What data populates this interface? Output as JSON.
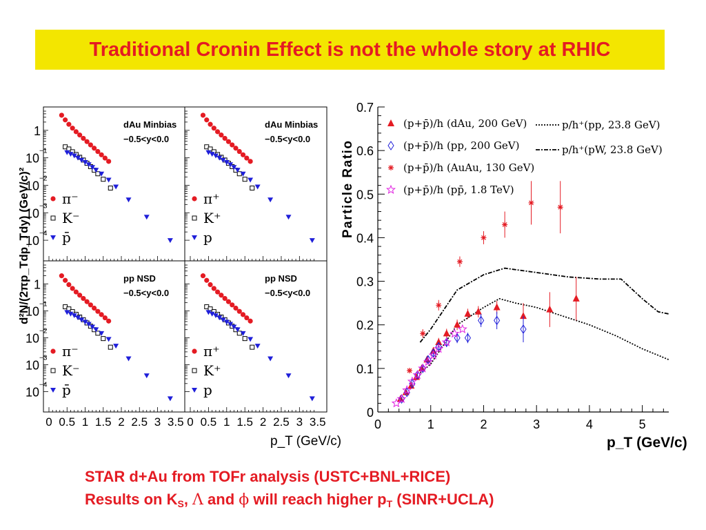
{
  "slide": {
    "title": "Traditional Cronin Effect is not the whole story at RHIC",
    "footer_line1": "STAR d+Au from TOFr analysis (USTC+BNL+RICE)",
    "footer_line2": {
      "a": "Results on K",
      "a_sub": "S",
      "b": ", ",
      "lambda": "Λ",
      "c": " and ",
      "phi": "ϕ",
      "d": " will reach higher p",
      "d_sub": "T",
      "e": " (SINR+UCLA)"
    },
    "colors": {
      "title_bg": "#f3e600",
      "accent_red": "#e41b23",
      "blue": "#1f1fd9"
    }
  },
  "chart_data": [
    {
      "type": "scatter",
      "grid": "2x2 panels, log y",
      "ylabel": "d²N/(2πp_Tdp_Tdy) (GeV/c)²",
      "xlabel": "p_T (GeV/c)",
      "xticks": [
        "0",
        "0.5",
        "1",
        "1.5",
        "2",
        "2.5",
        "3",
        "3.5"
      ],
      "yticks": [
        "1",
        "10⁻¹",
        "10⁻²",
        "10⁻³",
        "10⁻⁴"
      ],
      "xlim": [
        0,
        3.6
      ],
      "ylog_range": [
        -4.6,
        0.7
      ],
      "panels": [
        {
          "line1": "dAu Minbias",
          "line2": "−0.5<y<0.0",
          "legend": [
            "π⁻",
            "K⁻",
            "p̄"
          ]
        },
        {
          "line1": "dAu Minbias",
          "line2": "−0.5<y<0.0",
          "legend": [
            "π⁺",
            "K⁺",
            "p"
          ]
        },
        {
          "line1": "pp NSD",
          "line2": "−0.5<y<0.0",
          "legend": [
            "π⁻",
            "K⁻",
            "p̄"
          ]
        },
        {
          "line1": "pp NSD",
          "line2": "−0.5<y<0.0",
          "legend": [
            "π⁺",
            "K⁺",
            "p"
          ]
        }
      ],
      "series": [
        {
          "name": "π",
          "marker": "filled-circle",
          "color": "#e41b23",
          "x": [
            0.35,
            0.45,
            0.55,
            0.65,
            0.75,
            0.85,
            0.95,
            1.05,
            1.15,
            1.25,
            1.35,
            1.45,
            1.55,
            1.65
          ],
          "log10y": [
            0.55,
            0.38,
            0.22,
            0.08,
            -0.05,
            -0.17,
            -0.29,
            -0.41,
            -0.53,
            -0.65,
            -0.77,
            -0.89,
            -1.01,
            -1.13
          ]
        },
        {
          "name": "K",
          "marker": "open-square",
          "color": "#000000",
          "x": [
            0.45,
            0.55,
            0.65,
            0.75,
            0.85,
            0.95,
            1.05,
            1.15,
            1.25,
            1.35,
            1.5,
            1.7
          ],
          "log10y": [
            -0.6,
            -0.68,
            -0.78,
            -0.88,
            -0.98,
            -1.08,
            -1.2,
            -1.32,
            -1.45,
            -1.58,
            -1.78,
            -2.1
          ]
        },
        {
          "name": "p",
          "marker": "filled-triangle-down",
          "color": "#1f1fd9",
          "x": [
            0.5,
            0.6,
            0.7,
            0.8,
            0.9,
            1.0,
            1.1,
            1.2,
            1.3,
            1.45,
            1.65,
            1.85,
            2.2,
            2.7,
            3.35
          ],
          "log10y": [
            -0.8,
            -0.86,
            -0.92,
            -1.0,
            -1.08,
            -1.16,
            -1.24,
            -1.34,
            -1.44,
            -1.58,
            -1.8,
            -2.05,
            -2.52,
            -3.15,
            -4.0
          ]
        }
      ]
    },
    {
      "type": "scatter",
      "title": "",
      "xlabel": "p_T (GeV/c)",
      "ylabel": "Particle Ratio",
      "xlim": [
        0,
        5.5
      ],
      "ylim": [
        0,
        0.7
      ],
      "xticks": [
        0,
        1,
        2,
        3,
        4,
        5
      ],
      "yticks": [
        0,
        0.1,
        0.2,
        0.3,
        0.4,
        0.5,
        0.6,
        0.7
      ],
      "legend": [
        {
          "label": "(p+p̄)/h (dAu, 200 GeV)",
          "marker": "filled-triangle",
          "color": "#e41b23"
        },
        {
          "label": "(p+p̄)/h (pp, 200 GeV)",
          "marker": "open-diamond",
          "color": "#1f1fd9"
        },
        {
          "label": "(p+p̄)/h (AuAu, 130 GeV)",
          "marker": "star",
          "color": "#e41b23"
        },
        {
          "label": "(p+p̄)/h (pp̄, 1.8 TeV)",
          "marker": "open-star",
          "color": "#e020e0"
        },
        {
          "label": "p/h⁺(pp, 23.8 GeV)",
          "style": "dotted"
        },
        {
          "label": "p/h⁺(pW, 23.8 GeV)",
          "style": "dash-dot"
        }
      ],
      "series": [
        {
          "name": "(p+p̄)/h (dAu, 200 GeV)",
          "x": [
            0.43,
            0.53,
            0.63,
            0.73,
            0.83,
            0.93,
            1.05,
            1.15,
            1.3,
            1.5,
            1.7,
            1.9,
            2.25,
            2.75,
            3.25,
            3.75
          ],
          "y": [
            0.03,
            0.045,
            0.06,
            0.08,
            0.1,
            0.12,
            0.14,
            0.16,
            0.18,
            0.2,
            0.225,
            0.23,
            0.24,
            0.22,
            0.235,
            0.26
          ],
          "err": [
            0.004,
            0.004,
            0.005,
            0.006,
            0.007,
            0.008,
            0.009,
            0.01,
            0.011,
            0.012,
            0.012,
            0.013,
            0.015,
            0.03,
            0.04,
            0.05
          ]
        },
        {
          "name": "(p+p̄)/h (pp, 200 GeV)",
          "x": [
            0.45,
            0.55,
            0.65,
            0.75,
            0.85,
            0.95,
            1.05,
            1.15,
            1.3,
            1.5,
            1.7,
            1.95,
            2.25,
            2.75
          ],
          "y": [
            0.03,
            0.045,
            0.065,
            0.085,
            0.1,
            0.12,
            0.135,
            0.15,
            0.16,
            0.17,
            0.17,
            0.21,
            0.21,
            0.19
          ],
          "err": [
            0.004,
            0.004,
            0.005,
            0.006,
            0.007,
            0.008,
            0.009,
            0.01,
            0.011,
            0.012,
            0.012,
            0.015,
            0.02,
            0.03
          ]
        },
        {
          "name": "(p+p̄)/h (AuAu, 130 GeV)",
          "x": [
            0.6,
            0.85,
            1.15,
            1.55,
            2.0,
            2.4,
            2.9,
            3.45
          ],
          "y": [
            0.095,
            0.18,
            0.245,
            0.345,
            0.4,
            0.43,
            0.48,
            0.47
          ],
          "err": [
            0.005,
            0.01,
            0.012,
            0.012,
            0.015,
            0.03,
            0.05,
            0.06
          ]
        },
        {
          "name": "(p+p̄)/h (pp̄, 1.8 TeV)",
          "x": [
            0.35,
            0.45,
            0.55,
            0.65,
            0.75,
            0.85,
            0.95,
            1.05,
            1.15,
            1.3,
            1.45,
            1.6
          ],
          "y": [
            0.02,
            0.03,
            0.05,
            0.07,
            0.085,
            0.1,
            0.115,
            0.13,
            0.145,
            0.16,
            0.18,
            0.19
          ],
          "err": [
            0,
            0,
            0,
            0,
            0,
            0,
            0,
            0,
            0,
            0,
            0,
            0
          ]
        },
        {
          "name": "p/h⁺(pp, 23.8 GeV)",
          "line": "dotted",
          "x": [
            0.8,
            1.0,
            1.5,
            2.0,
            2.3,
            2.6,
            3.0,
            3.5,
            4.0,
            4.5,
            5.0,
            5.5
          ],
          "y": [
            0.09,
            0.11,
            0.2,
            0.24,
            0.26,
            0.25,
            0.24,
            0.22,
            0.2,
            0.175,
            0.145,
            0.12
          ]
        },
        {
          "name": "p/h⁺(pW, 23.8 GeV)",
          "line": "dash-dot",
          "x": [
            0.8,
            1.0,
            1.5,
            2.0,
            2.4,
            3.0,
            3.6,
            4.2,
            4.6,
            5.0,
            5.3,
            5.5
          ],
          "y": [
            0.16,
            0.19,
            0.28,
            0.315,
            0.33,
            0.32,
            0.31,
            0.305,
            0.305,
            0.26,
            0.23,
            0.225
          ]
        }
      ]
    }
  ]
}
